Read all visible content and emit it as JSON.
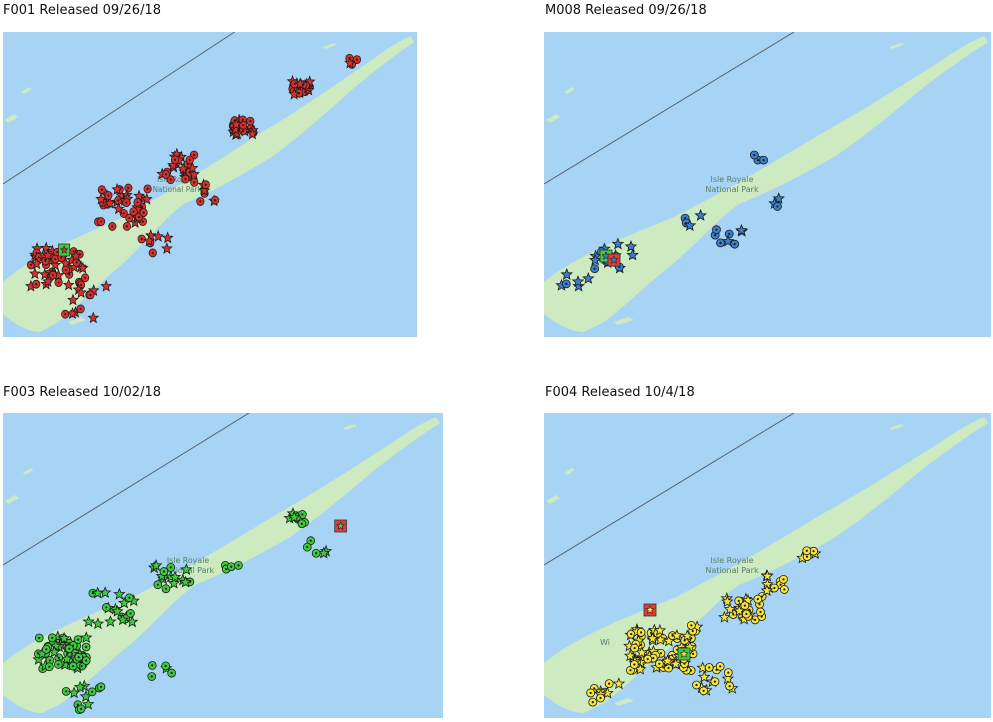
{
  "colors": {
    "water": "#a7d4f5",
    "land": "#cdeac0",
    "boundary": "#5a6068",
    "outline": "#1a1a1a",
    "release_marker_red": "#e23b3b",
    "release_marker_green": "#43c843"
  },
  "map_label": {
    "line1": "Isle Royale",
    "line2": "National Park"
  },
  "town_label": "Wi",
  "panels": [
    {
      "id": "F001",
      "title": "F001 Released 09/26/18",
      "marker_color": "#d9302c",
      "icons": [
        "star-icon",
        "circle-dot-icon"
      ]
    },
    {
      "id": "M008",
      "title": "M008 Released 09/26/18",
      "marker_color": "#3a7fd0",
      "icons": [
        "star-icon",
        "circle-dot-icon"
      ]
    },
    {
      "id": "F003",
      "title": "F003 Released 10/02/18",
      "marker_color": "#3ecb3e",
      "icons": [
        "star-icon",
        "circle-dot-icon"
      ]
    },
    {
      "id": "F004",
      "title": "F004 Released 10/4/18",
      "marker_color": "#f5e43a",
      "icons": [
        "star-icon",
        "circle-dot-icon"
      ]
    }
  ]
}
